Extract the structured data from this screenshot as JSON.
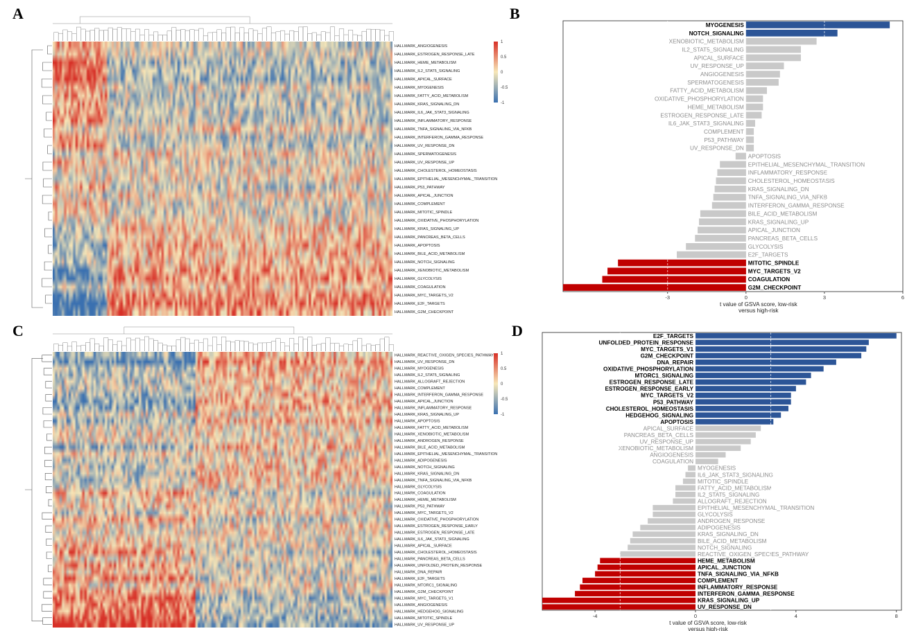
{
  "panels": [
    "A",
    "B",
    "C",
    "D"
  ],
  "colors": {
    "heat_high": "#d73027",
    "heat_mid": "#f7e7b8",
    "heat_low": "#3a70b0",
    "bar_up": "#2c5597",
    "bar_down": "#c00000",
    "bar_ns": "#c9c9c9",
    "label_sig": "#000000",
    "label_ns": "#8c8c8c"
  },
  "chart_data": [
    {
      "panel": "A",
      "type": "heatmap",
      "title": "",
      "colorbar_ticks": [
        "1",
        "0.5",
        "0",
        "-0.5",
        "-1"
      ],
      "rows": [
        "HALLMARK_ANGIOGENESIS",
        "HALLMARK_ESTROGEN_RESPONSE_LATE",
        "HALLMARK_HEME_METABOLISM",
        "HALLMARK_IL2_STAT5_SIGNALING",
        "HALLMARK_APICAL_SURFACE",
        "HALLMARK_MYOGENESIS",
        "HALLMARK_FATTY_ACID_METABOLISM",
        "HALLMARK_KRAS_SIGNALING_DN",
        "HALLMARK_IL6_JAK_STAT3_SIGNALING",
        "HALLMARK_INFLAMMATORY_RESPONSE",
        "HALLMARK_TNFA_SIGNALING_VIA_NFKB",
        "HALLMARK_INTERFERON_GAMMA_RESPONSE",
        "HALLMARK_UV_RESPONSE_DN",
        "HALLMARK_SPERMATOGENESIS",
        "HALLMARK_UV_RESPONSE_UP",
        "HALLMARK_CHOLESTEROL_HOMEOSTASIS",
        "HALLMARK_EPITHELIAL_MESENCHYMAL_TRANSITION",
        "HALLMARK_P53_PATHWAY",
        "HALLMARK_APICAL_JUNCTION",
        "HALLMARK_COMPLEMENT",
        "HALLMARK_MITOTIC_SPINDLE",
        "HALLMARK_OXIDATIVE_PHOSPHORYLATION",
        "HALLMARK_KRAS_SIGNALING_UP",
        "HALLMARK_PANCREAS_BETA_CELLS",
        "HALLMARK_APOPTOSIS",
        "HALLMARK_BILE_ACID_METABOLISM",
        "HALLMARK_NOTCH_SIGNALING",
        "HALLMARK_XENOBIOTIC_METABOLISM",
        "HALLMARK_GLYCOLYSIS",
        "HALLMARK_COAGULATION",
        "HALLMARK_MYC_TARGETS_V2",
        "HALLMARK_E2F_TARGETS",
        "HALLMARK_G2M_CHECKPOINT"
      ]
    },
    {
      "panel": "B",
      "type": "bar",
      "orientation": "horizontal",
      "xlabel": "t value of GSVA score, low-risk versus high-risk",
      "xlabel_lines": [
        "t value of GSVA score, low-risk",
        "versus high-risk"
      ],
      "xlim": [
        -7,
        6
      ],
      "xticks": [
        -3,
        0,
        3,
        6
      ],
      "threshold": [
        -3,
        3
      ],
      "grid": false,
      "bars": [
        {
          "label": "MYOGENESIS",
          "value": 5.5,
          "group": "up"
        },
        {
          "label": "NOTCH_SIGNALING",
          "value": 3.5,
          "group": "up"
        },
        {
          "label": "XENOBIOTIC_METABOLISM",
          "value": 2.7,
          "group": "ns"
        },
        {
          "label": "IL2_STAT5_SIGNALING",
          "value": 2.1,
          "group": "ns"
        },
        {
          "label": "APICAL_SURFACE",
          "value": 2.1,
          "group": "ns"
        },
        {
          "label": "UV_RESPONSE_UP",
          "value": 1.45,
          "group": "ns"
        },
        {
          "label": "ANGIOGENESIS",
          "value": 1.3,
          "group": "ns"
        },
        {
          "label": "SPERMATOGENESIS",
          "value": 1.25,
          "group": "ns"
        },
        {
          "label": "FATTY_ACID_METABOLISM",
          "value": 0.8,
          "group": "ns"
        },
        {
          "label": "OXIDATIVE_PHOSPHORYLATION",
          "value": 0.65,
          "group": "ns"
        },
        {
          "label": "HEME_METABOLISM",
          "value": 0.65,
          "group": "ns"
        },
        {
          "label": "ESTROGEN_RESPONSE_LATE",
          "value": 0.6,
          "group": "ns"
        },
        {
          "label": "IL6_JAK_STAT3_SIGNALING",
          "value": 0.35,
          "group": "ns"
        },
        {
          "label": "COMPLEMENT",
          "value": 0.3,
          "group": "ns"
        },
        {
          "label": "P53_PATHWAY",
          "value": 0.3,
          "group": "ns"
        },
        {
          "label": "UV_RESPONSE_DN",
          "value": 0.3,
          "group": "ns"
        },
        {
          "label": "APOPTOSIS",
          "value": -0.4,
          "group": "ns"
        },
        {
          "label": "EPITHELIAL_MESENCHYMAL_TRANSITION",
          "value": -1.0,
          "group": "ns"
        },
        {
          "label": "INFLAMMATORY_RESPONSE",
          "value": -1.1,
          "group": "ns"
        },
        {
          "label": "CHOLESTEROL_HOMEOSTASIS",
          "value": -1.15,
          "group": "ns"
        },
        {
          "label": "KRAS_SIGNALING_DN",
          "value": -1.2,
          "group": "ns"
        },
        {
          "label": "TNFA_SIGNALING_VIA_NFKB",
          "value": -1.25,
          "group": "ns"
        },
        {
          "label": "INTERFERON_GAMMA_RESPONSE",
          "value": -1.3,
          "group": "ns"
        },
        {
          "label": "BILE_ACID_METABOLISM",
          "value": -1.75,
          "group": "ns"
        },
        {
          "label": "KRAS_SIGNALING_UP",
          "value": -1.8,
          "group": "ns"
        },
        {
          "label": "APICAL_JUNCTION",
          "value": -1.85,
          "group": "ns"
        },
        {
          "label": "PANCREAS_BETA_CELLS",
          "value": -1.95,
          "group": "ns"
        },
        {
          "label": "GLYCOLYSIS",
          "value": -2.3,
          "group": "ns"
        },
        {
          "label": "E2F_TARGETS",
          "value": -2.65,
          "group": "ns"
        },
        {
          "label": "MITOTIC_SPINDLE",
          "value": -4.9,
          "group": "down"
        },
        {
          "label": "MYC_TARGETS_V2",
          "value": -5.3,
          "group": "down"
        },
        {
          "label": "COAGULATION",
          "value": -5.5,
          "group": "down"
        },
        {
          "label": "G2M_CHECKPOINT",
          "value": -7.0,
          "group": "down"
        }
      ]
    },
    {
      "panel": "C",
      "type": "heatmap",
      "title": "",
      "colorbar_ticks": [
        "1",
        "0.5",
        "0",
        "-0.5",
        "-1"
      ],
      "rows": [
        "HALLMARK_REACTIVE_OXIGEN_SPECIES_PATHWAY",
        "HALLMARK_UV_RESPONSE_DN",
        "HALLMARK_MYOGENESIS",
        "HALLMARK_IL2_STAT5_SIGNALING",
        "HALLMARK_ALLOGRAFT_REJECTION",
        "HALLMARK_COMPLEMENT",
        "HALLMARK_INTERFERON_GAMMA_RESPONSE",
        "HALLMARK_APICAL_JUNCTION",
        "HALLMARK_INFLAMMATORY_RESPONSE",
        "HALLMARK_KRAS_SIGNALING_UP",
        "HALLMARK_APOPTOSIS",
        "HALLMARK_FATTY_ACID_METABOLISM",
        "HALLMARK_XENOBIOTIC_METABOLISM",
        "HALLMARK_ANDROGEN_RESPONSE",
        "HALLMARK_BILE_ACID_METABOLISM",
        "HALLMARK_EPITHELIAL_MESENCHYMAL_TRANSITION",
        "HALLMARK_ADIPOGENESIS",
        "HALLMARK_NOTCH_SIGNALING",
        "HALLMARK_KRAS_SIGNALING_DN",
        "HALLMARK_TNFA_SIGNALING_VIA_NFKB",
        "HALLMARK_GLYCOLYSIS",
        "HALLMARK_COAGULATION",
        "HALLMARK_HEME_METABOLISM",
        "HALLMARK_P53_PATHWAY",
        "HALLMARK_MYC_TARGETS_V2",
        "HALLMARK_OXIDATIVE_PHOSPHORYLATION",
        "HALLMARK_ESTROGEN_RESPONSE_EARLY",
        "HALLMARK_ESTROGEN_RESPONSE_LATE",
        "HALLMARK_IL6_JAK_STAT3_SIGNALING",
        "HALLMARK_APICAL_SURFACE",
        "HALLMARK_CHOLESTEROL_HOMEOSTASIS",
        "HALLMARK_PANCREAS_BETA_CELLS",
        "HALLMARK_UNFOLDED_PROTEIN_RESPONSE",
        "HALLMARK_DNA_REPAIR",
        "HALLMARK_E2F_TARGETS",
        "HALLMARK_MTORC1_SIGNALING",
        "HALLMARK_G2M_CHECKPOINT",
        "HALLMARK_MYC_TARGETS_V1",
        "HALLMARK_ANGIOGENESIS",
        "HALLMARK_HEDGEHOG_SIGNALING",
        "HALLMARK_MITOTIC_SPINDLE",
        "HALLMARK_UV_RESPONSE_UP"
      ]
    },
    {
      "panel": "D",
      "type": "bar",
      "orientation": "horizontal",
      "xlabel": "t value of GSVA score, low-risk versus high-risk",
      "xlabel_lines": [
        "t value of GSVA score, low-risk",
        "versus high-risk"
      ],
      "xlim": [
        -6.1,
        8.2
      ],
      "xticks": [
        -4,
        0,
        4,
        8
      ],
      "threshold": [
        -3,
        3
      ],
      "grid": false,
      "bars": [
        {
          "label": "E2F_TARGETS",
          "value": 8.0,
          "group": "up"
        },
        {
          "label": "UNFOLDED_PROTEIN_RESPONSE",
          "value": 6.9,
          "group": "up"
        },
        {
          "label": "MYC_TARGETS_V1",
          "value": 6.8,
          "group": "up"
        },
        {
          "label": "G2M_CHECKPOINT",
          "value": 6.6,
          "group": "up"
        },
        {
          "label": "DNA_REPAIR",
          "value": 5.6,
          "group": "up"
        },
        {
          "label": "OXIDATIVE_PHOSPHORYLATION",
          "value": 5.1,
          "group": "up"
        },
        {
          "label": "MTORC1_SIGNALING",
          "value": 4.6,
          "group": "up"
        },
        {
          "label": "ESTROGEN_RESPONSE_LATE",
          "value": 4.4,
          "group": "up"
        },
        {
          "label": "ESTROGEN_RESPONSE_EARLY",
          "value": 4.0,
          "group": "up"
        },
        {
          "label": "MYC_TARGETS_V2",
          "value": 3.8,
          "group": "up"
        },
        {
          "label": "P53_PATHWAY",
          "value": 3.8,
          "group": "up"
        },
        {
          "label": "CHOLESTEROL_HOMEOSTASIS",
          "value": 3.7,
          "group": "up"
        },
        {
          "label": "HEDGEHOG_SIGNALING",
          "value": 3.4,
          "group": "up"
        },
        {
          "label": "APOPTOSIS",
          "value": 3.1,
          "group": "up"
        },
        {
          "label": "APICAL_SURFACE",
          "value": 2.6,
          "group": "ns"
        },
        {
          "label": "PANCREAS_BETA_CELLS",
          "value": 2.4,
          "group": "ns"
        },
        {
          "label": "UV_RESPONSE_UP",
          "value": 2.2,
          "group": "ns"
        },
        {
          "label": "XENOBIOTIC_METABOLISM",
          "value": 1.8,
          "group": "ns"
        },
        {
          "label": "ANGIOGENESIS",
          "value": 1.2,
          "group": "ns"
        },
        {
          "label": "COAGULATION",
          "value": 0.9,
          "group": "ns"
        },
        {
          "label": "MYOGENESIS",
          "value": -0.3,
          "group": "ns"
        },
        {
          "label": "IL6_JAK_STAT3_SIGNALING",
          "value": -0.4,
          "group": "ns"
        },
        {
          "label": "MITOTIC_SPINDLE",
          "value": -0.5,
          "group": "ns"
        },
        {
          "label": "FATTY_ACID_METABOLISM",
          "value": -0.8,
          "group": "ns"
        },
        {
          "label": "IL2_STAT5_SIGNALING",
          "value": -0.8,
          "group": "ns"
        },
        {
          "label": "ALLOGRAFT_REJECTION",
          "value": -0.9,
          "group": "ns"
        },
        {
          "label": "EPITHELIAL_MESENCHYMAL_TRANSITION",
          "value": -1.7,
          "group": "ns"
        },
        {
          "label": "GLYCOLYSIS",
          "value": -1.7,
          "group": "ns"
        },
        {
          "label": "ANDROGEN_RESPONSE",
          "value": -1.9,
          "group": "ns"
        },
        {
          "label": "ADIPOGENESIS",
          "value": -2.2,
          "group": "ns"
        },
        {
          "label": "KRAS_SIGNALING_DN",
          "value": -2.5,
          "group": "ns"
        },
        {
          "label": "BILE_ACID_METABOLISM",
          "value": -2.6,
          "group": "ns"
        },
        {
          "label": "NOTCH_SIGNALING",
          "value": -2.7,
          "group": "ns"
        },
        {
          "label": "REACTIVE_OXIGEN_SPECIES_PATHWAY",
          "value": -3.0,
          "group": "ns"
        },
        {
          "label": "HEME_METABOLISM",
          "value": -3.8,
          "group": "down"
        },
        {
          "label": "APICAL_JUNCTION",
          "value": -3.9,
          "group": "down"
        },
        {
          "label": "TNFA_SIGNALING_VIA_NFKB",
          "value": -4.0,
          "group": "down"
        },
        {
          "label": "COMPLEMENT",
          "value": -4.5,
          "group": "down"
        },
        {
          "label": "INFLAMMATORY_RESPONSE",
          "value": -4.6,
          "group": "down"
        },
        {
          "label": "INTERFERON_GAMMA_RESPONSE",
          "value": -4.8,
          "group": "down"
        },
        {
          "label": "KRAS_SIGNALING_UP",
          "value": -6.1,
          "group": "down"
        },
        {
          "label": "UV_RESPONSE_DN",
          "value": -6.1,
          "group": "down"
        }
      ]
    }
  ]
}
